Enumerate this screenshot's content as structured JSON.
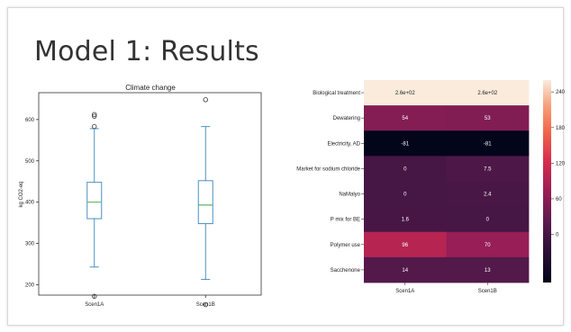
{
  "slide": {
    "title": "Model 1: Results"
  },
  "chart_data": [
    {
      "type": "box",
      "title": "Climate change",
      "ylabel": "kg CO2-eq",
      "xlabel": "",
      "ylim": [
        175,
        665
      ],
      "yticks": [
        200,
        300,
        400,
        500,
        600
      ],
      "categories": [
        "Scen1A",
        "Scen1B"
      ],
      "series": [
        {
          "category": "Scen1A",
          "min": 243,
          "q1": 360,
          "median": 400,
          "q3": 448,
          "max": 578,
          "outliers": [
            172,
            583,
            608,
            612
          ]
        },
        {
          "category": "Scen1B",
          "min": 213,
          "q1": 348,
          "median": 393,
          "q3": 452,
          "max": 583,
          "outliers": [
            152,
            648
          ]
        }
      ],
      "colors": {
        "box": "#4a90c4",
        "median": "#5cb85c",
        "whisker": "#4a90c4"
      },
      "grid": false
    },
    {
      "type": "heatmap",
      "columns": [
        "Scen1A",
        "Scen1B"
      ],
      "rows": [
        "Biological treatment",
        "Dewatering",
        "Electricity, AD",
        "Market for sodium chloride",
        "NaMalyo",
        "P mix for BE",
        "Polymer use",
        "Sacchenone"
      ],
      "values": [
        [
          260,
          260
        ],
        [
          54,
          53
        ],
        [
          -81,
          -81
        ],
        [
          0,
          7.5
        ],
        [
          0,
          2.4
        ],
        [
          1.6,
          0
        ],
        [
          96,
          70
        ],
        [
          14,
          13
        ]
      ],
      "labels": [
        [
          "2.6e+02",
          "2.6e+02"
        ],
        [
          "54",
          "53"
        ],
        [
          "-81",
          "-81"
        ],
        [
          "0",
          "7.5"
        ],
        [
          "0",
          "2.4"
        ],
        [
          "1.6",
          "0"
        ],
        [
          "96",
          "70"
        ],
        [
          "14",
          "13"
        ]
      ],
      "colorbar": {
        "ticks": [
          240,
          180,
          120,
          60,
          0
        ],
        "min": -81,
        "max": 260,
        "colormap": "rocket"
      }
    }
  ]
}
